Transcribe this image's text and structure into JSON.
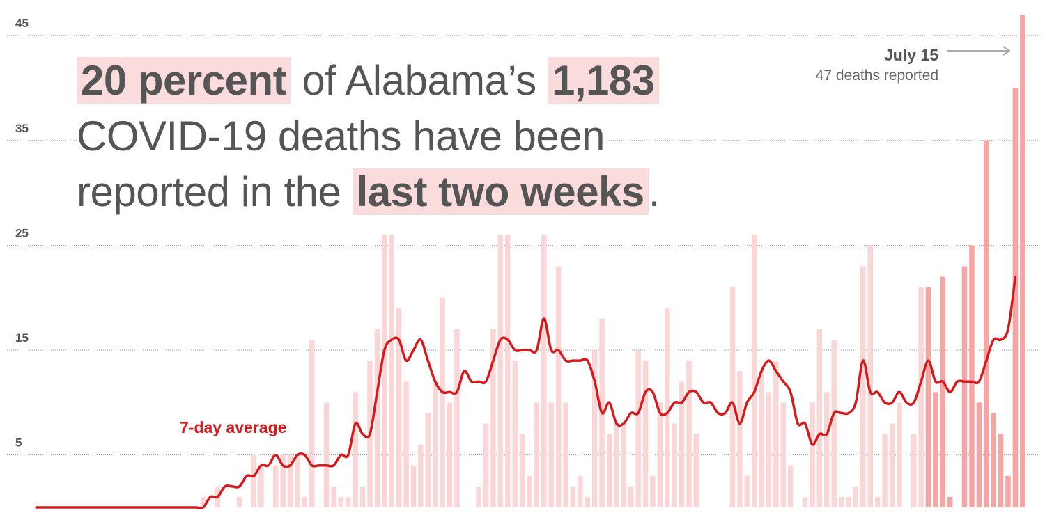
{
  "headline": {
    "part1": "20 percent",
    "part2": " of Alabama’s ",
    "part3": "1,183",
    "part4": " COVID-19 deaths have been reported in the ",
    "part5": "last two weeks",
    "part6": "."
  },
  "colors": {
    "bar_light": "#fbd6d6",
    "bar_recent": "#f6a5a5",
    "avg_line": "#d7191c",
    "text": "#555555",
    "grid": "#9a9a9a"
  },
  "chart_data": {
    "type": "bar",
    "ylim": [
      0,
      47
    ],
    "yticks": [
      5,
      15,
      25,
      35,
      45
    ],
    "grid": true,
    "avg_label": "7-day average",
    "annotation": {
      "title": "July 15",
      "subtitle": "47 deaths reported"
    },
    "recent_days": 14,
    "values": [
      0,
      0,
      0,
      0,
      0,
      0,
      0,
      0,
      0,
      0,
      0,
      0,
      0,
      0,
      0,
      0,
      0,
      0,
      0,
      0,
      0,
      0,
      0,
      1,
      0,
      2,
      0,
      0,
      1,
      0,
      5,
      4,
      0,
      4,
      5,
      5,
      5,
      1,
      16,
      0,
      10,
      2,
      1,
      1,
      11,
      2,
      14,
      17,
      26,
      26,
      19,
      12,
      4,
      6,
      9,
      12,
      20,
      10,
      17,
      0,
      0,
      2,
      8,
      17,
      26,
      26,
      14,
      7,
      3,
      10,
      26,
      10,
      23,
      10,
      2,
      3,
      1,
      15,
      18,
      7,
      8,
      8,
      2,
      15,
      14,
      3,
      10,
      19,
      8,
      12,
      14,
      7,
      0,
      0,
      0,
      0,
      21,
      13,
      3,
      26,
      13,
      11,
      14,
      10,
      4,
      0,
      1,
      10,
      17,
      11,
      16,
      1,
      1,
      2,
      23,
      25,
      1,
      7,
      8,
      10,
      0,
      7,
      21,
      21,
      11,
      22,
      1,
      0,
      23,
      25,
      10,
      35,
      9,
      7,
      3,
      40,
      47
    ],
    "average": [
      0,
      0,
      0,
      0,
      0,
      0,
      0,
      0,
      0,
      0,
      0,
      0,
      0,
      0,
      0,
      0,
      0,
      0,
      0,
      0,
      0,
      0,
      0,
      0,
      1,
      1,
      2,
      2,
      2,
      3,
      3,
      4,
      4,
      5,
      4,
      4,
      5,
      5,
      4,
      4,
      4,
      4,
      5,
      5,
      8,
      7,
      7,
      11,
      15,
      16,
      16,
      14,
      15,
      16,
      14,
      12,
      11,
      11,
      11,
      13,
      12,
      12,
      12,
      14,
      16,
      16,
      15,
      15,
      15,
      15,
      18,
      15,
      15,
      14,
      14,
      14,
      14,
      12,
      9,
      10,
      8,
      8,
      9,
      9,
      11,
      11,
      9,
      9,
      10,
      10,
      11,
      11,
      10,
      10,
      9,
      9,
      10,
      8,
      10,
      11,
      13,
      14,
      13,
      12,
      11,
      8,
      8,
      6,
      7,
      7,
      9,
      9,
      9,
      10,
      14,
      11,
      11,
      10,
      10,
      11,
      10,
      10,
      12,
      14,
      12,
      12,
      11,
      12,
      12,
      12,
      12,
      14,
      16,
      16,
      17,
      22
    ],
    "dates": {
      "last": "July 15"
    }
  }
}
